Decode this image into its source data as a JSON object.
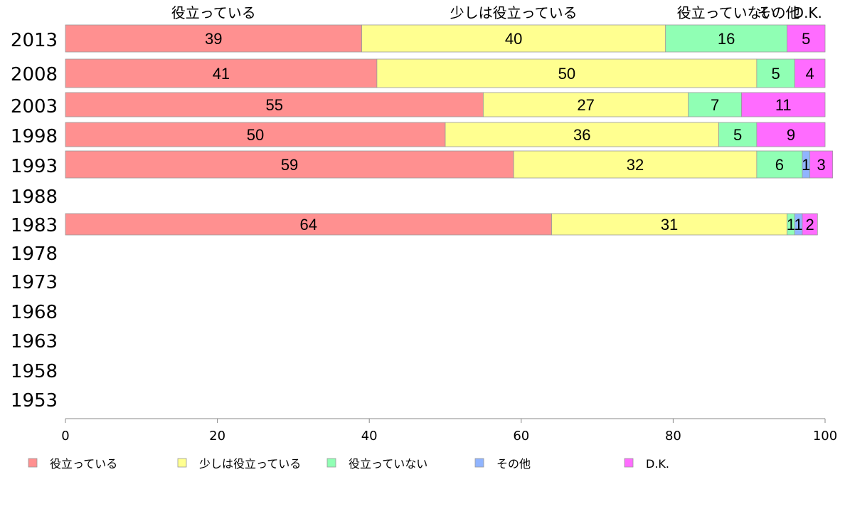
{
  "chart_data": {
    "type": "bar",
    "orientation": "horizontal",
    "stacked": true,
    "categories": [
      "2013",
      "2008",
      "2003",
      "1998",
      "1993",
      "1988",
      "1983",
      "1978",
      "1973",
      "1968",
      "1963",
      "1958",
      "1953"
    ],
    "series": [
      {
        "name": "役立っている",
        "color": "#ff9090",
        "values": [
          39,
          41,
          55,
          50,
          59,
          null,
          64,
          null,
          null,
          null,
          null,
          null,
          null
        ]
      },
      {
        "name": "少しは役立っている",
        "color": "#ffff90",
        "values": [
          40,
          50,
          27,
          36,
          32,
          null,
          31,
          null,
          null,
          null,
          null,
          null,
          null
        ]
      },
      {
        "name": "役立っていない",
        "color": "#90ffb4",
        "values": [
          16,
          5,
          7,
          5,
          6,
          null,
          1,
          null,
          null,
          null,
          null,
          null,
          null
        ]
      },
      {
        "name": "その他",
        "color": "#90b4ff",
        "values": [
          0,
          0,
          0,
          0,
          1,
          null,
          1,
          null,
          null,
          null,
          null,
          null,
          null
        ]
      },
      {
        "name": "D.K.",
        "color": "#ff6cff",
        "values": [
          5,
          4,
          11,
          9,
          3,
          null,
          2,
          null,
          null,
          null,
          null,
          null,
          null
        ]
      }
    ],
    "top_labels": [
      "役立っている",
      "少しは役立っている",
      "役立っていない",
      "その他",
      "D.K."
    ],
    "xlim": [
      0,
      100
    ],
    "xticks": [
      "0",
      "20",
      "40",
      "60",
      "80",
      "100"
    ],
    "legend": "bottom",
    "grid": false
  }
}
